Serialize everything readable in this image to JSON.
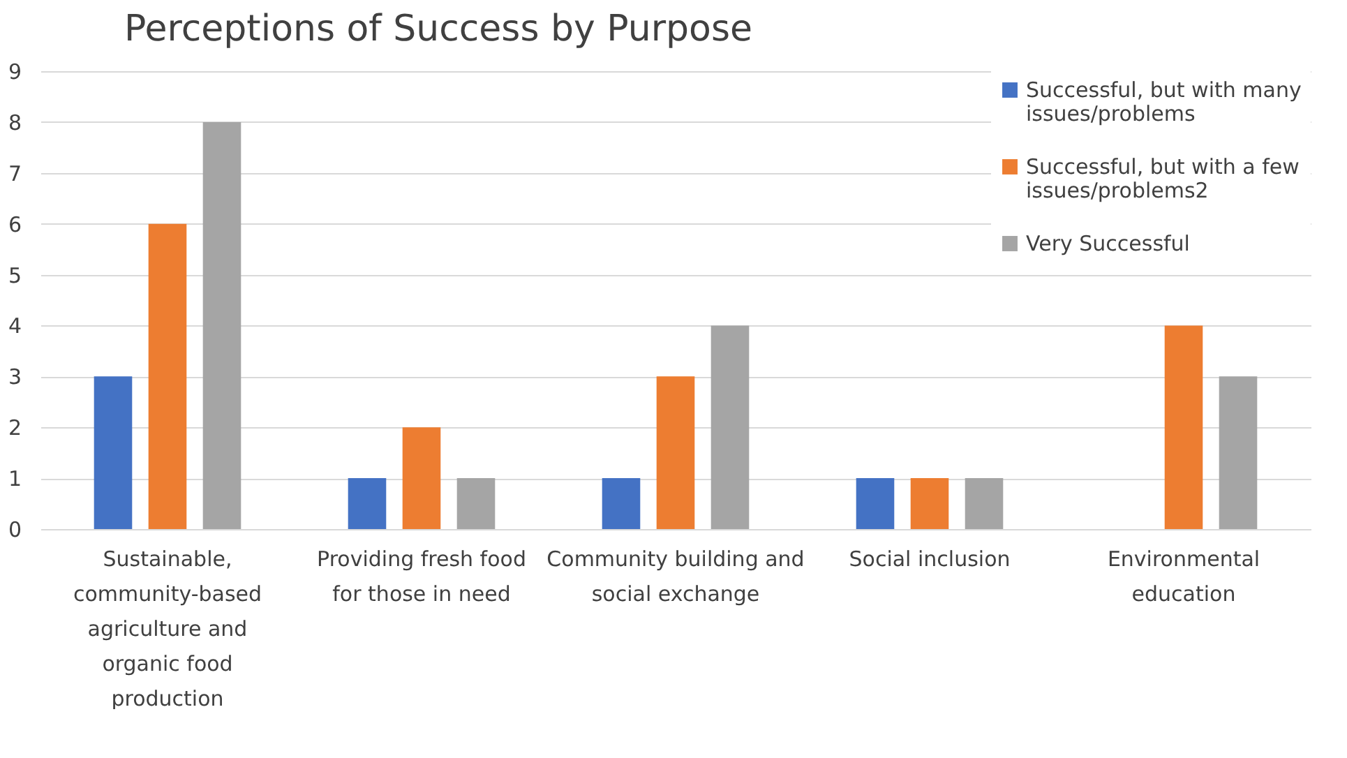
{
  "chart_data": {
    "type": "bar",
    "title": "Perceptions of Success by Purpose",
    "categories": [
      "Sustainable, community-based agriculture and organic food production",
      "Providing fresh food for those in need",
      "Community building and social exchange",
      "Social inclusion",
      "Environmental education"
    ],
    "series": [
      {
        "name": "Successful, but with many issues/problems",
        "color": "#4472c4",
        "values": [
          3,
          1,
          1,
          1,
          null
        ]
      },
      {
        "name": "Successful, but with a few issues/problems2",
        "color": "#ed7d31",
        "values": [
          6,
          2,
          3,
          1,
          4
        ]
      },
      {
        "name": "Very Successful",
        "color": "#a5a5a5",
        "values": [
          8,
          1,
          4,
          1,
          3
        ]
      }
    ],
    "ylim": [
      0,
      9
    ],
    "yticks": [
      0,
      1,
      2,
      3,
      4,
      5,
      6,
      7,
      8,
      9
    ],
    "grid": "y",
    "legend": "top right"
  }
}
